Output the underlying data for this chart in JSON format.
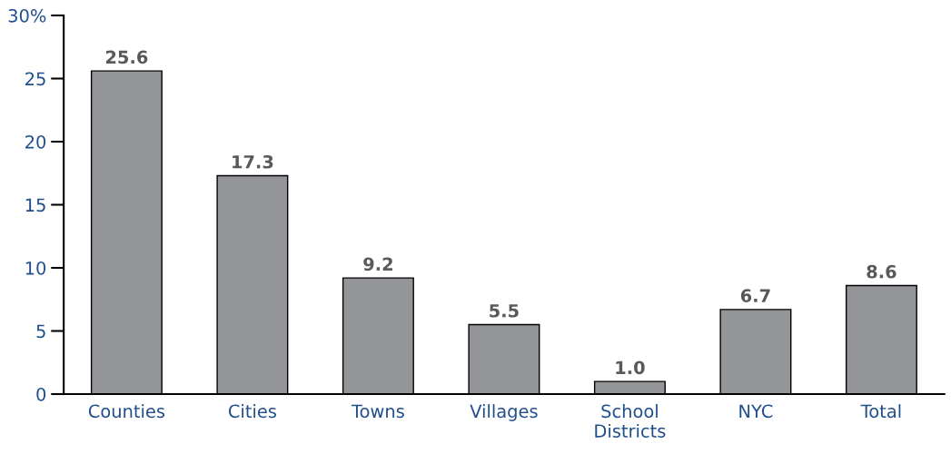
{
  "chart_data": {
    "type": "bar",
    "categories": [
      "Counties",
      "Cities",
      "Towns",
      "Villages",
      "School\nDistricts",
      "NYC",
      "Total"
    ],
    "values": [
      25.6,
      17.3,
      9.2,
      5.5,
      1.0,
      6.7,
      8.6
    ],
    "value_labels": [
      "25.6",
      "17.3",
      "9.2",
      "5.5",
      "1.0",
      "6.7",
      "8.6"
    ],
    "color": "#939598",
    "ylim": [
      0,
      30
    ],
    "yticks": [
      0,
      5,
      10,
      15,
      20,
      25,
      {
        "value": 30,
        "label": "30%"
      }
    ],
    "grid": false,
    "legend": false
  }
}
